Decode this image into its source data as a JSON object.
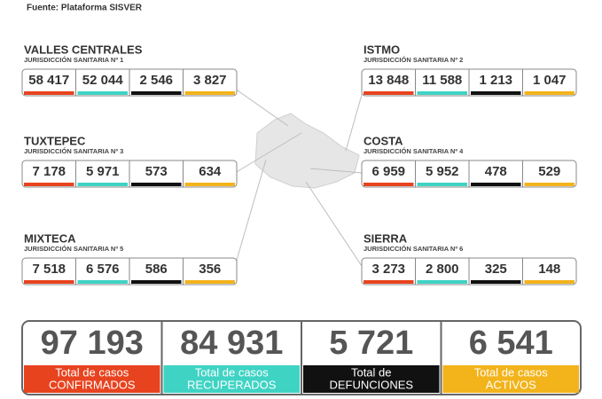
{
  "header": {
    "source": "Fuente: Plataforma SISVER"
  },
  "regions": [
    {
      "name": "VALLES CENTRALES",
      "jurisdiction": "JURISDICCIÓN SANITARIA Nº 1",
      "values": [
        "58 417",
        "52 044",
        "2 546",
        "3 827"
      ]
    },
    {
      "name": "ISTMO",
      "jurisdiction": "JURISDICCIÓN SANITARIA Nº 2",
      "values": [
        "13 848",
        "11 588",
        "1 213",
        "1 047"
      ]
    },
    {
      "name": "TUXTEPEC",
      "jurisdiction": "JURISDICCIÓN SANITARIA Nº 3",
      "values": [
        "7 178",
        "5 971",
        "573",
        "634"
      ]
    },
    {
      "name": "COSTA",
      "jurisdiction": "JURISDICCIÓN SANITARIA Nº 4",
      "values": [
        "6 959",
        "5 952",
        "478",
        "529"
      ]
    },
    {
      "name": "MIXTECA",
      "jurisdiction": "JURISDICCIÓN SANITARIA Nº 5",
      "values": [
        "7 518",
        "6 576",
        "586",
        "356"
      ]
    },
    {
      "name": "SIERRA",
      "jurisdiction": "JURISDICCIÓN SANITARIA Nº 6",
      "values": [
        "3 273",
        "2 800",
        "325",
        "148"
      ]
    }
  ],
  "totals": [
    {
      "value": "97 193",
      "label": [
        "Total de casos",
        "CONFIRMADOS"
      ]
    },
    {
      "value": "84 931",
      "label": [
        "Total de casos",
        "RECUPERADOS"
      ]
    },
    {
      "value": "5 721",
      "label": [
        "Total de",
        "DEFUNCIONES"
      ]
    },
    {
      "value": "6 541",
      "label": [
        "Total de casos",
        "ACTIVOS"
      ]
    }
  ]
}
